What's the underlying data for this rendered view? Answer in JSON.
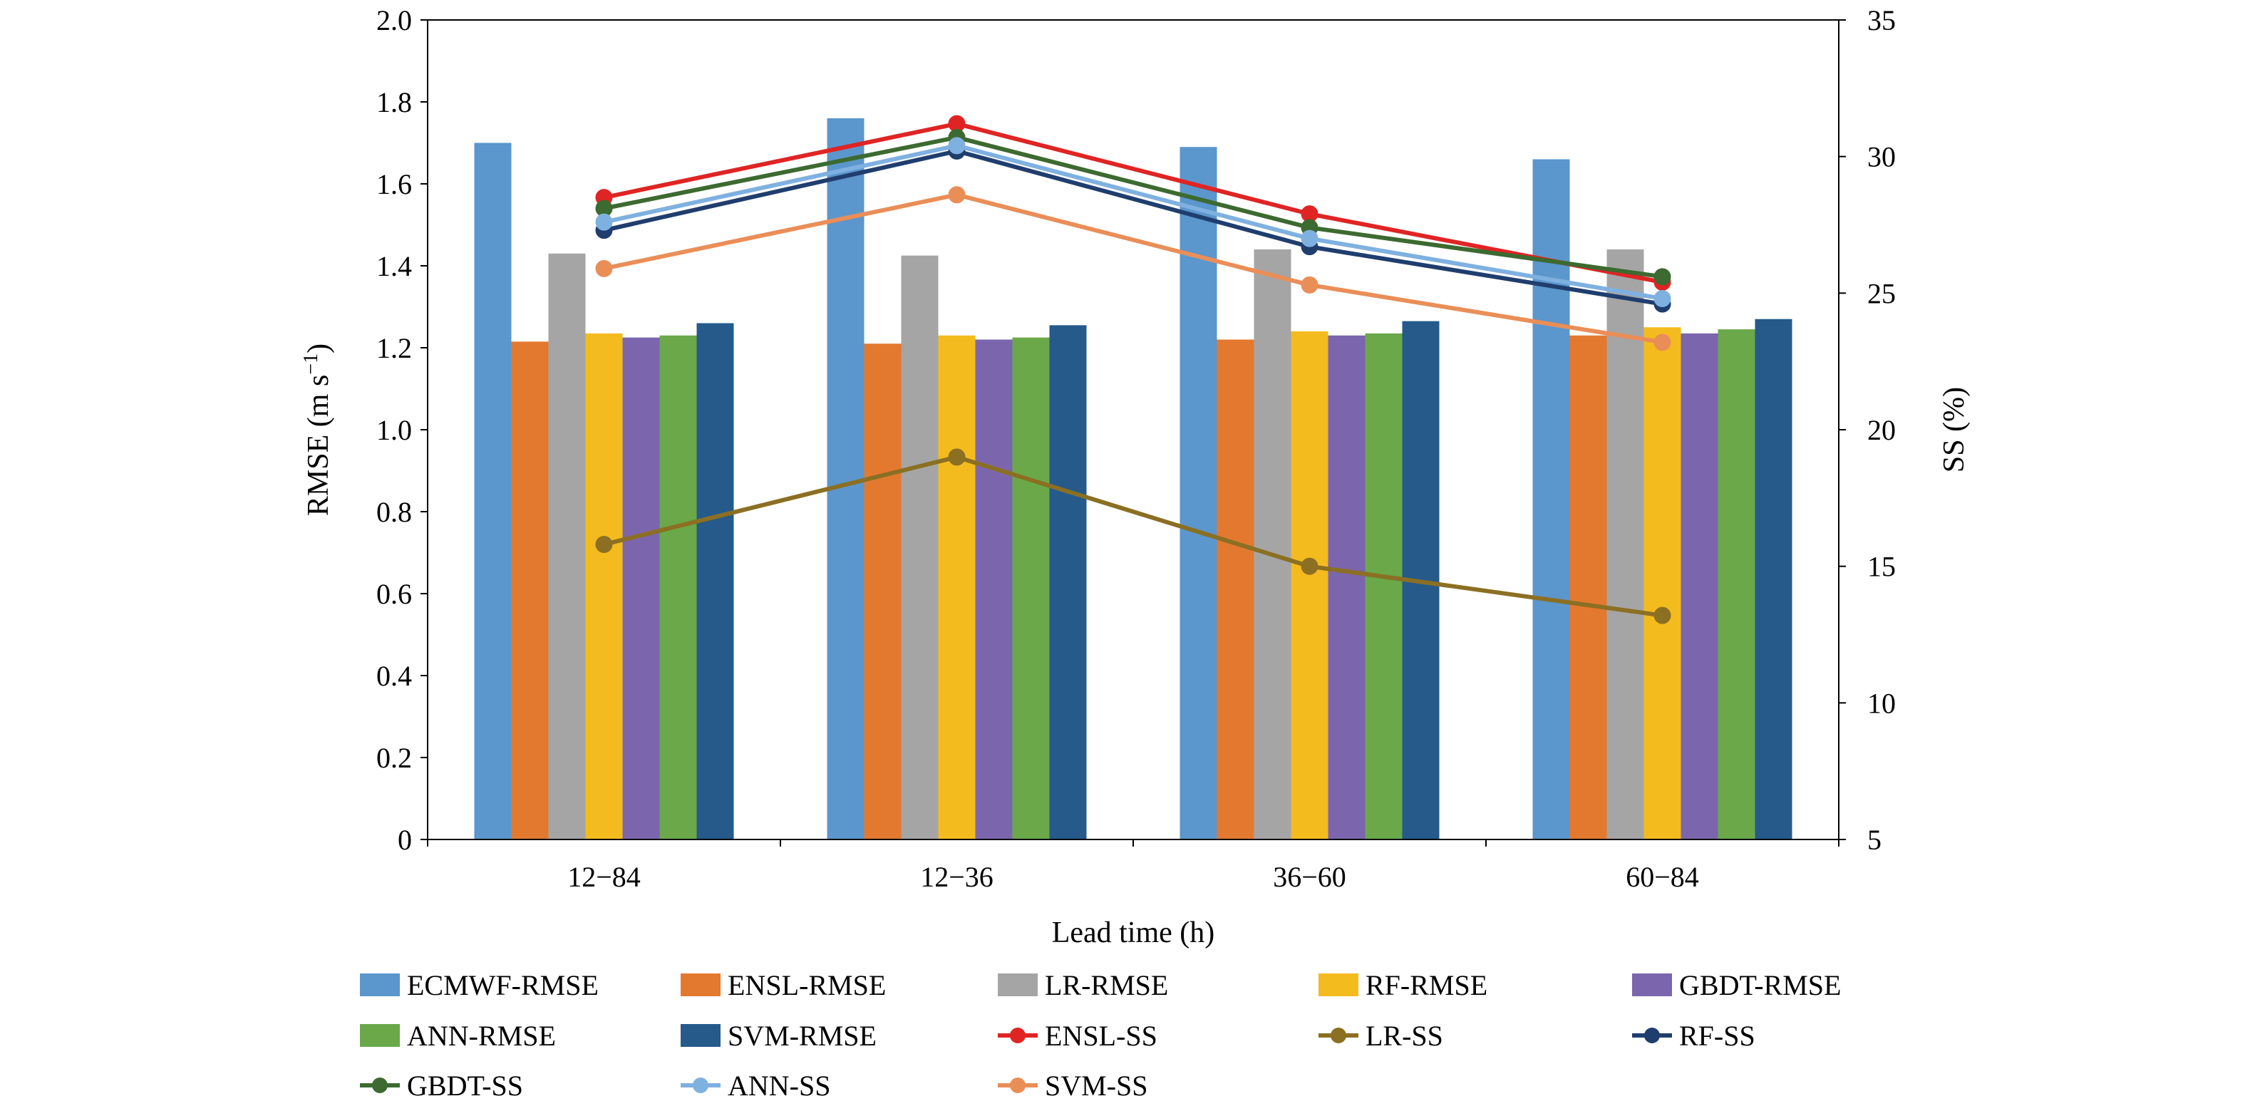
{
  "chart_data": {
    "type": "bar",
    "categories": [
      "12−84",
      "12−36",
      "36−60",
      "60−84"
    ],
    "xlabel": "Lead time (h)",
    "ylabel_left_main": "RMSE (m s",
    "ylabel_left_sup": "−1",
    "ylabel_left_tail": ")",
    "ylabel_right": "SS (%)",
    "ylim_left": [
      0,
      2.0
    ],
    "ylim_right": [
      5,
      35
    ],
    "yticks_left": [
      "0",
      "0.2",
      "0.4",
      "0.6",
      "0.8",
      "1.0",
      "1.2",
      "1.4",
      "1.6",
      "1.8",
      "2.0"
    ],
    "yticks_right": [
      "5",
      "10",
      "15",
      "20",
      "25",
      "30",
      "35"
    ],
    "grid": false,
    "legend_position": "bottom",
    "bar_series": [
      {
        "name": "ECMWF-RMSE",
        "color": "#5b96cc",
        "values": [
          1.7,
          1.76,
          1.69,
          1.66
        ]
      },
      {
        "name": "ENSL-RMSE",
        "color": "#e3792f",
        "values": [
          1.215,
          1.21,
          1.22,
          1.23
        ]
      },
      {
        "name": "LR-RMSE",
        "color": "#a5a5a5",
        "values": [
          1.43,
          1.425,
          1.44,
          1.44
        ]
      },
      {
        "name": "RF-RMSE",
        "color": "#f4bb1e",
        "values": [
          1.235,
          1.23,
          1.24,
          1.25
        ]
      },
      {
        "name": "GBDT-RMSE",
        "color": "#7b66ad",
        "values": [
          1.225,
          1.22,
          1.23,
          1.235
        ]
      },
      {
        "name": "ANN-RMSE",
        "color": "#6aa84a",
        "values": [
          1.23,
          1.225,
          1.235,
          1.245
        ]
      },
      {
        "name": "SVM-RMSE",
        "color": "#255a8b",
        "values": [
          1.26,
          1.255,
          1.265,
          1.27
        ]
      }
    ],
    "line_series": [
      {
        "name": "ENSL-SS",
        "color": "#e02424",
        "values": [
          28.5,
          31.2,
          27.9,
          25.4
        ]
      },
      {
        "name": "LR-SS",
        "color": "#8b6f22",
        "values": [
          15.8,
          19.0,
          15.0,
          13.2
        ]
      },
      {
        "name": "RF-SS",
        "color": "#1f3e6e",
        "values": [
          27.3,
          30.2,
          26.7,
          24.6
        ]
      },
      {
        "name": "GBDT-SS",
        "color": "#3c6a30",
        "values": [
          28.1,
          30.7,
          27.4,
          25.6
        ]
      },
      {
        "name": "ANN-SS",
        "color": "#7fb1e0",
        "values": [
          27.6,
          30.4,
          27.0,
          24.8
        ]
      },
      {
        "name": "SVM-SS",
        "color": "#ea8e58",
        "values": [
          25.9,
          28.6,
          25.3,
          23.2
        ]
      }
    ],
    "legend": [
      {
        "name": "ECMWF-RMSE",
        "kind": "bar",
        "color": "#5b96cc"
      },
      {
        "name": "ENSL-RMSE",
        "kind": "bar",
        "color": "#e3792f"
      },
      {
        "name": "LR-RMSE",
        "kind": "bar",
        "color": "#a5a5a5"
      },
      {
        "name": "RF-RMSE",
        "kind": "bar",
        "color": "#f4bb1e"
      },
      {
        "name": "GBDT-RMSE",
        "kind": "bar",
        "color": "#7b66ad"
      },
      {
        "name": "ANN-RMSE",
        "kind": "bar",
        "color": "#6aa84a"
      },
      {
        "name": "SVM-RMSE",
        "kind": "bar",
        "color": "#255a8b"
      },
      {
        "name": "ENSL-SS",
        "kind": "line",
        "color": "#e02424"
      },
      {
        "name": "LR-SS",
        "kind": "line",
        "color": "#8b6f22"
      },
      {
        "name": "RF-SS",
        "kind": "line",
        "color": "#1f3e6e"
      },
      {
        "name": "GBDT-SS",
        "kind": "line",
        "color": "#3c6a30"
      },
      {
        "name": "ANN-SS",
        "kind": "line",
        "color": "#7fb1e0"
      },
      {
        "name": "SVM-SS",
        "kind": "line",
        "color": "#ea8e58"
      }
    ]
  }
}
